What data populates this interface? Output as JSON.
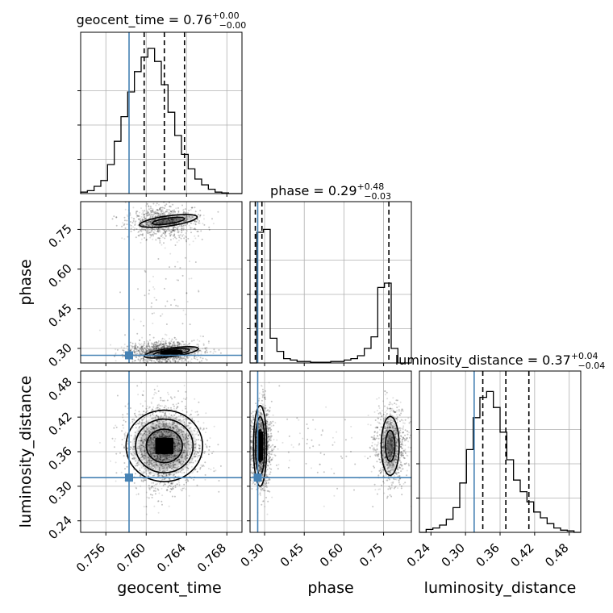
{
  "chart_data": {
    "type": "corner",
    "parameters": [
      "geocent_time",
      "phase",
      "luminosity_distance"
    ],
    "titles": [
      {
        "base": "geocent_time = 0.76",
        "plus": "+0.00",
        "minus": "−0.00"
      },
      {
        "base": "phase = 0.29",
        "plus": "+0.48",
        "minus": "−0.03"
      },
      {
        "base": "luminosity_distance = 0.37",
        "plus": "+0.04",
        "minus": "−0.04"
      }
    ],
    "xlabels": [
      "geocent_time",
      "phase",
      "luminosity_distance"
    ],
    "ylabels": [
      "",
      "phase",
      "luminosity_distance"
    ],
    "ranges": [
      [
        0.7535,
        0.7695
      ],
      [
        0.245,
        0.855
      ],
      [
        0.22,
        0.5
      ]
    ],
    "ticks": [
      {
        "values": [
          0.756,
          0.76,
          0.764,
          0.768
        ],
        "labels": [
          "0.756",
          "0.760",
          "0.764",
          "0.768"
        ]
      },
      {
        "values": [
          0.3,
          0.45,
          0.6,
          0.75
        ],
        "labels": [
          "0.30",
          "0.45",
          "0.60",
          "0.75"
        ]
      },
      {
        "values": [
          0.24,
          0.3,
          0.36,
          0.42,
          0.48
        ],
        "labels": [
          "0.24",
          "0.30",
          "0.36",
          "0.42",
          "0.48"
        ]
      }
    ],
    "truths": [
      0.7583,
      0.274,
      0.315
    ],
    "truth_color": "#4682b4",
    "quantiles": [
      [
        0.7598,
        0.7618,
        0.7638
      ],
      [
        0.265,
        0.29,
        0.77
      ],
      [
        0.33,
        0.37,
        0.41
      ]
    ],
    "histograms": [
      {
        "bins": 24,
        "counts": [
          0.01,
          0.02,
          0.05,
          0.09,
          0.2,
          0.36,
          0.53,
          0.7,
          0.84,
          0.94,
          1.0,
          0.91,
          0.75,
          0.56,
          0.4,
          0.27,
          0.17,
          0.1,
          0.06,
          0.03,
          0.01,
          0.005,
          0,
          0
        ]
      },
      {
        "bins": 24,
        "counts": [
          0,
          0.9,
          0.92,
          0.17,
          0.08,
          0.03,
          0.02,
          0.01,
          0.01,
          0.005,
          0.005,
          0.005,
          0.01,
          0.01,
          0.02,
          0.03,
          0.05,
          0.1,
          0.18,
          0.52,
          0.55,
          0.1,
          0,
          0
        ]
      },
      {
        "bins": 24,
        "counts": [
          0,
          0.02,
          0.03,
          0.05,
          0.09,
          0.17,
          0.34,
          0.57,
          0.79,
          0.93,
          0.97,
          0.86,
          0.69,
          0.5,
          0.36,
          0.28,
          0.21,
          0.14,
          0.1,
          0.06,
          0.03,
          0.015,
          0.01,
          0
        ]
      }
    ],
    "colors": {
      "hist": "#000000",
      "contour": "#000000",
      "grid": "#b0b0b0",
      "scatter": "#000000"
    }
  }
}
